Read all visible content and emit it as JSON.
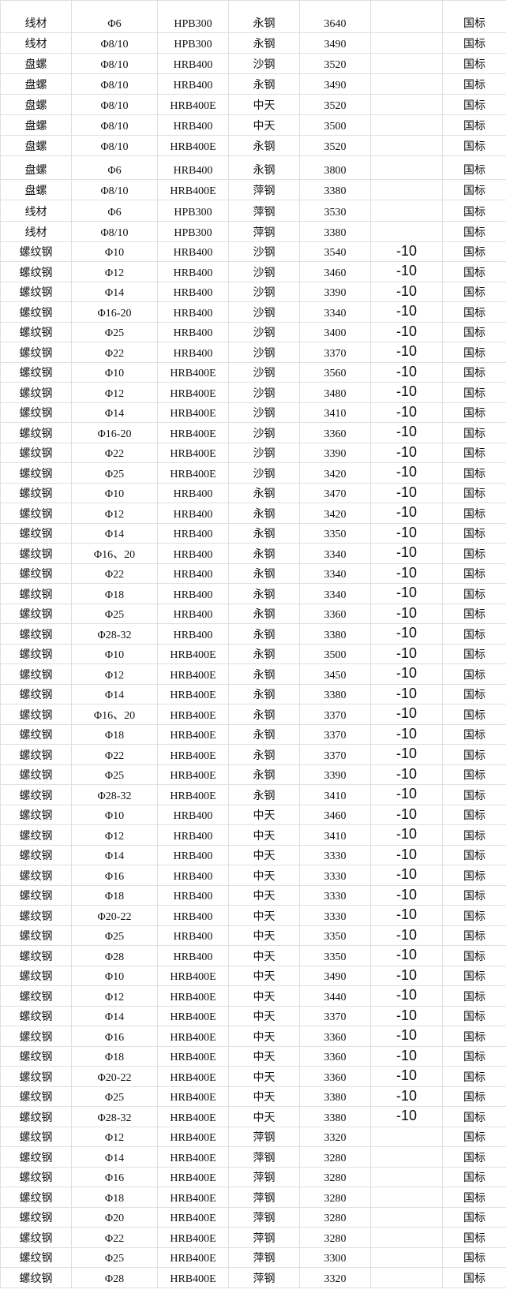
{
  "table": {
    "rows": [
      [
        "线材",
        "Φ6",
        "HPB300",
        "永钢",
        "3640",
        "",
        "国标"
      ],
      [
        "线材",
        "Φ8/10",
        "HPB300",
        "永钢",
        "3490",
        "",
        "国标"
      ],
      [
        "盘螺",
        "Φ8/10",
        "HRB400",
        "沙钢",
        "3520",
        "",
        "国标"
      ],
      [
        "盘螺",
        "Φ8/10",
        "HRB400",
        "永钢",
        "3490",
        "",
        "国标"
      ],
      [
        "盘螺",
        "Φ8/10",
        "HRB400E",
        "中天",
        "3520",
        "",
        "国标"
      ],
      [
        "盘螺",
        "Φ8/10",
        "HRB400",
        "中天",
        "3500",
        "",
        "国标"
      ],
      [
        "盘螺",
        "Φ8/10",
        "HRB400E",
        "永钢",
        "3520",
        "",
        "国标"
      ],
      [
        "盘螺",
        "Φ6",
        "HRB400",
        "永钢",
        "3800",
        "",
        "国标"
      ],
      [
        "盘螺",
        "Φ8/10",
        "HRB400E",
        "萍钢",
        "3380",
        "",
        "国标"
      ],
      [
        "线材",
        "Φ6",
        "HPB300",
        "萍钢",
        "3530",
        "",
        "国标"
      ],
      [
        "线材",
        "Φ8/10",
        "HPB300",
        "萍钢",
        "3380",
        "",
        "国标"
      ],
      [
        "螺纹钢",
        "Φ10",
        "HRB400",
        "沙钢",
        "3540",
        "-10",
        "国标"
      ],
      [
        "螺纹钢",
        "Φ12",
        "HRB400",
        "沙钢",
        "3460",
        "-10",
        "国标"
      ],
      [
        "螺纹钢",
        "Φ14",
        "HRB400",
        "沙钢",
        "3390",
        "-10",
        "国标"
      ],
      [
        "螺纹钢",
        "Φ16-20",
        "HRB400",
        "沙钢",
        "3340",
        "-10",
        "国标"
      ],
      [
        "螺纹钢",
        "Φ25",
        "HRB400",
        "沙钢",
        "3400",
        "-10",
        "国标"
      ],
      [
        "螺纹钢",
        "Φ22",
        "HRB400",
        "沙钢",
        "3370",
        "-10",
        "国标"
      ],
      [
        "螺纹钢",
        "Φ10",
        "HRB400E",
        "沙钢",
        "3560",
        "-10",
        "国标"
      ],
      [
        "螺纹钢",
        "Φ12",
        "HRB400E",
        "沙钢",
        "3480",
        "-10",
        "国标"
      ],
      [
        "螺纹钢",
        "Φ14",
        "HRB400E",
        "沙钢",
        "3410",
        "-10",
        "国标"
      ],
      [
        "螺纹钢",
        "Φ16-20",
        "HRB400E",
        "沙钢",
        "3360",
        "-10",
        "国标"
      ],
      [
        "螺纹钢",
        "Φ22",
        "HRB400E",
        "沙钢",
        "3390",
        "-10",
        "国标"
      ],
      [
        "螺纹钢",
        "Φ25",
        "HRB400E",
        "沙钢",
        "3420",
        "-10",
        "国标"
      ],
      [
        "螺纹钢",
        "Φ10",
        "HRB400",
        "永钢",
        "3470",
        "-10",
        "国标"
      ],
      [
        "螺纹钢",
        "Φ12",
        "HRB400",
        "永钢",
        "3420",
        "-10",
        "国标"
      ],
      [
        "螺纹钢",
        "Φ14",
        "HRB400",
        "永钢",
        "3350",
        "-10",
        "国标"
      ],
      [
        "螺纹钢",
        "Φ16、20",
        "HRB400",
        "永钢",
        "3340",
        "-10",
        "国标"
      ],
      [
        "螺纹钢",
        "Φ22",
        "HRB400",
        "永钢",
        "3340",
        "-10",
        "国标"
      ],
      [
        "螺纹钢",
        "Φ18",
        "HRB400",
        "永钢",
        "3340",
        "-10",
        "国标"
      ],
      [
        "螺纹钢",
        "Φ25",
        "HRB400",
        "永钢",
        "3360",
        "-10",
        "国标"
      ],
      [
        "螺纹钢",
        "Φ28-32",
        "HRB400",
        "永钢",
        "3380",
        "-10",
        "国标"
      ],
      [
        "螺纹钢",
        "Φ10",
        "HRB400E",
        "永钢",
        "3500",
        "-10",
        "国标"
      ],
      [
        "螺纹钢",
        "Φ12",
        "HRB400E",
        "永钢",
        "3450",
        "-10",
        "国标"
      ],
      [
        "螺纹钢",
        "Φ14",
        "HRB400E",
        "永钢",
        "3380",
        "-10",
        "国标"
      ],
      [
        "螺纹钢",
        "Φ16、20",
        "HRB400E",
        "永钢",
        "3370",
        "-10",
        "国标"
      ],
      [
        "螺纹钢",
        "Φ18",
        "HRB400E",
        "永钢",
        "3370",
        "-10",
        "国标"
      ],
      [
        "螺纹钢",
        "Φ22",
        "HRB400E",
        "永钢",
        "3370",
        "-10",
        "国标"
      ],
      [
        "螺纹钢",
        "Φ25",
        "HRB400E",
        "永钢",
        "3390",
        "-10",
        "国标"
      ],
      [
        "螺纹钢",
        "Φ28-32",
        "HRB400E",
        "永钢",
        "3410",
        "-10",
        "国标"
      ],
      [
        "螺纹钢",
        "Φ10",
        "HRB400",
        "中天",
        "3460",
        "-10",
        "国标"
      ],
      [
        "螺纹钢",
        "Φ12",
        "HRB400",
        "中天",
        "3410",
        "-10",
        "国标"
      ],
      [
        "螺纹钢",
        "Φ14",
        "HRB400",
        "中天",
        "3330",
        "-10",
        "国标"
      ],
      [
        "螺纹钢",
        "Φ16",
        "HRB400",
        "中天",
        "3330",
        "-10",
        "国标"
      ],
      [
        "螺纹钢",
        "Φ18",
        "HRB400",
        "中天",
        "3330",
        "-10",
        "国标"
      ],
      [
        "螺纹钢",
        "Φ20-22",
        "HRB400",
        "中天",
        "3330",
        "-10",
        "国标"
      ],
      [
        "螺纹钢",
        "Φ25",
        "HRB400",
        "中天",
        "3350",
        "-10",
        "国标"
      ],
      [
        "螺纹钢",
        "Φ28",
        "HRB400",
        "中天",
        "3350",
        "-10",
        "国标"
      ],
      [
        "螺纹钢",
        "Φ10",
        "HRB400E",
        "中天",
        "3490",
        "-10",
        "国标"
      ],
      [
        "螺纹钢",
        "Φ12",
        "HRB400E",
        "中天",
        "3440",
        "-10",
        "国标"
      ],
      [
        "螺纹钢",
        "Φ14",
        "HRB400E",
        "中天",
        "3370",
        "-10",
        "国标"
      ],
      [
        "螺纹钢",
        "Φ16",
        "HRB400E",
        "中天",
        "3360",
        "-10",
        "国标"
      ],
      [
        "螺纹钢",
        "Φ18",
        "HRB400E",
        "中天",
        "3360",
        "-10",
        "国标"
      ],
      [
        "螺纹钢",
        "Φ20-22",
        "HRB400E",
        "中天",
        "3360",
        "-10",
        "国标"
      ],
      [
        "螺纹钢",
        "Φ25",
        "HRB400E",
        "中天",
        "3380",
        "-10",
        "国标"
      ],
      [
        "螺纹钢",
        "Φ28-32",
        "HRB400E",
        "中天",
        "3380",
        "-10",
        "国标"
      ],
      [
        "螺纹钢",
        "Φ12",
        "HRB400E",
        "萍钢",
        "3320",
        "",
        "国标"
      ],
      [
        "螺纹钢",
        "Φ14",
        "HRB400E",
        "萍钢",
        "3280",
        "",
        "国标"
      ],
      [
        "螺纹钢",
        "Φ16",
        "HRB400E",
        "萍钢",
        "3280",
        "",
        "国标"
      ],
      [
        "螺纹钢",
        "Φ18",
        "HRB400E",
        "萍钢",
        "3280",
        "",
        "国标"
      ],
      [
        "螺纹钢",
        "Φ20",
        "HRB400E",
        "萍钢",
        "3280",
        "",
        "国标"
      ],
      [
        "螺纹钢",
        "Φ22",
        "HRB400E",
        "萍钢",
        "3280",
        "",
        "国标"
      ],
      [
        "螺纹钢",
        "Φ25",
        "HRB400E",
        "萍钢",
        "3300",
        "",
        "国标"
      ],
      [
        "螺纹钢",
        "Φ28",
        "HRB400E",
        "萍钢",
        "3320",
        "",
        "国标"
      ]
    ]
  }
}
